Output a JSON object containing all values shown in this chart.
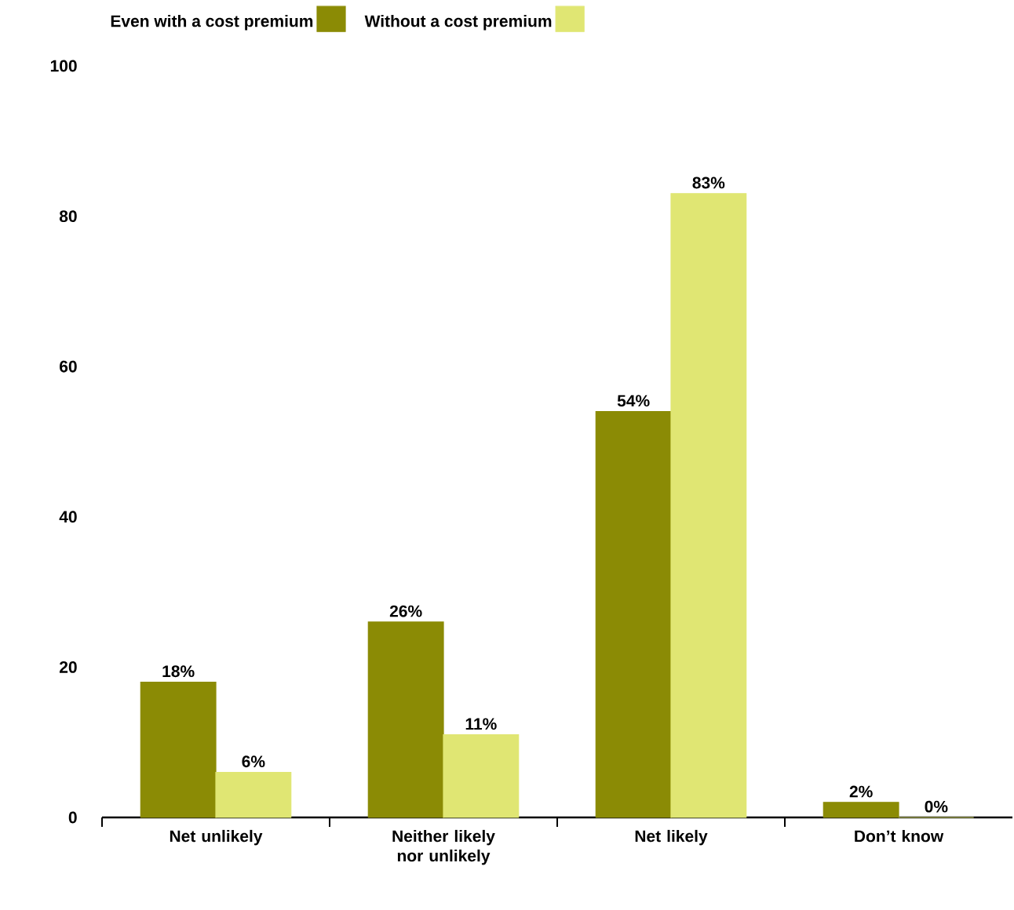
{
  "chart_data": {
    "type": "bar",
    "categories": [
      "Net unlikely",
      "Neither likely nor unlikely",
      "Net likely",
      "Don’t know"
    ],
    "series": [
      {
        "name": "Even with a cost premium",
        "color": "#8b8b05",
        "values": [
          18,
          26,
          54,
          2
        ],
        "value_labels": [
          "18%",
          "26%",
          "54%",
          "2%"
        ]
      },
      {
        "name": "Without a cost premium",
        "color": "#e0e673",
        "values": [
          6,
          11,
          83,
          0
        ],
        "value_labels": [
          "6%",
          "11%",
          "83%",
          "0%"
        ]
      }
    ],
    "ylim": [
      0,
      100
    ],
    "yticks": [
      0,
      20,
      40,
      60,
      80,
      100
    ],
    "grid": false,
    "legend": "top left"
  }
}
